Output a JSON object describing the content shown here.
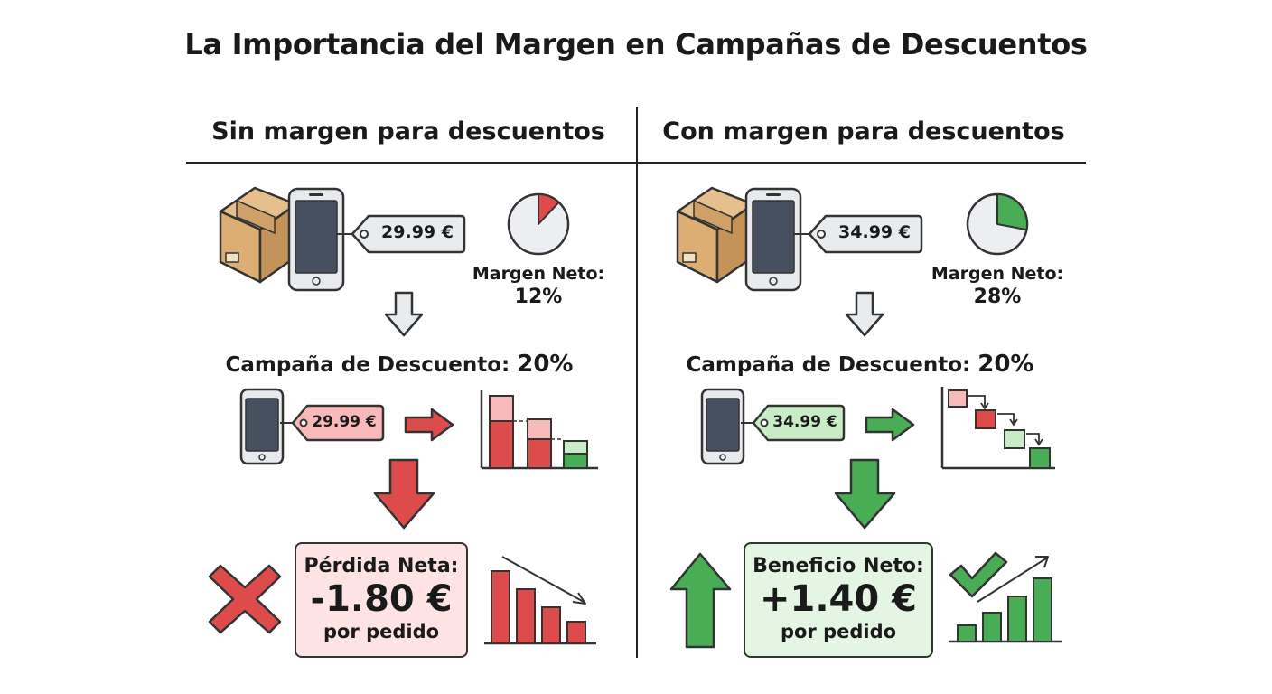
{
  "title": "La Importancia del Margen en Campañas de Descuentos",
  "left": {
    "heading": "Sin margen para descuentos",
    "price_tag": "29.99 €",
    "margin_label": "Margen Neto:",
    "margin_value": "12%",
    "margin_fraction": 0.12,
    "campaign_label": "Campaña de Descuento:",
    "campaign_value": "20%",
    "discount_tag": "29.99 €",
    "result_label": "Pérdida Neta:",
    "result_value": "-1.80 €",
    "result_unit": "por pedido"
  },
  "right": {
    "heading": "Con margen para descuentos",
    "price_tag": "34.99 €",
    "margin_label": "Margen Neto:",
    "margin_value": "28%",
    "margin_fraction": 0.28,
    "campaign_label": "Campaña de Descuento:",
    "campaign_value": "20%",
    "discount_tag": "34.99 €",
    "result_label": "Beneficio Neto:",
    "result_value": "+1.40 €",
    "result_unit": "por pedido"
  },
  "colors": {
    "red": "#de4b4b",
    "red_light": "#f7b9b9",
    "green": "#48ad55",
    "green_light": "#c9ebc6",
    "screen": "#46505f",
    "box": "#dcae74"
  }
}
